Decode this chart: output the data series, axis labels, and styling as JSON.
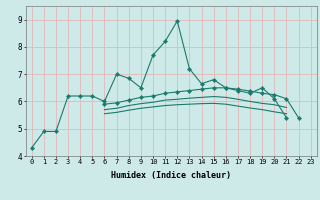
{
  "xlabel": "Humidex (Indice chaleur)",
  "x": [
    0,
    1,
    2,
    3,
    4,
    5,
    6,
    7,
    8,
    9,
    10,
    11,
    12,
    13,
    14,
    15,
    16,
    17,
    18,
    19,
    20,
    21,
    22,
    23
  ],
  "line1": [
    4.3,
    4.9,
    4.9,
    6.2,
    6.2,
    6.2,
    6.0,
    7.0,
    6.85,
    6.5,
    7.7,
    8.2,
    8.95,
    7.2,
    6.65,
    6.8,
    6.5,
    6.4,
    6.3,
    6.5,
    6.1,
    5.4,
    null,
    null
  ],
  "line2": [
    null,
    null,
    null,
    null,
    null,
    null,
    5.9,
    5.95,
    6.05,
    6.15,
    6.2,
    6.3,
    6.35,
    6.4,
    6.45,
    6.5,
    6.5,
    6.45,
    6.38,
    6.3,
    6.25,
    6.1,
    5.4,
    null
  ],
  "line3": [
    null,
    null,
    null,
    null,
    null,
    null,
    5.7,
    5.75,
    5.85,
    5.92,
    5.97,
    6.05,
    6.08,
    6.12,
    6.15,
    6.18,
    6.15,
    6.08,
    6.0,
    5.93,
    5.88,
    5.78,
    null,
    null
  ],
  "line4": [
    null,
    null,
    null,
    null,
    null,
    null,
    5.55,
    5.6,
    5.68,
    5.75,
    5.8,
    5.85,
    5.88,
    5.9,
    5.92,
    5.93,
    5.9,
    5.83,
    5.76,
    5.7,
    5.62,
    5.55,
    null,
    null
  ],
  "line5": [
    null,
    null,
    null,
    null,
    null,
    null,
    null,
    null,
    null,
    null,
    null,
    null,
    null,
    null,
    null,
    null,
    null,
    null,
    null,
    null,
    null,
    null,
    5.4,
    5.35
  ],
  "line_color": "#1a7a6e",
  "bg_color": "#ceeae8",
  "grid_color": "#e0b8b8",
  "ylim": [
    4.0,
    9.5
  ],
  "yticks": [
    4,
    5,
    6,
    7,
    8,
    9
  ],
  "xlim": [
    -0.5,
    23.5
  ],
  "xticks": [
    0,
    1,
    2,
    3,
    4,
    5,
    6,
    7,
    8,
    9,
    10,
    11,
    12,
    13,
    14,
    15,
    16,
    17,
    18,
    19,
    20,
    21,
    22,
    23
  ]
}
